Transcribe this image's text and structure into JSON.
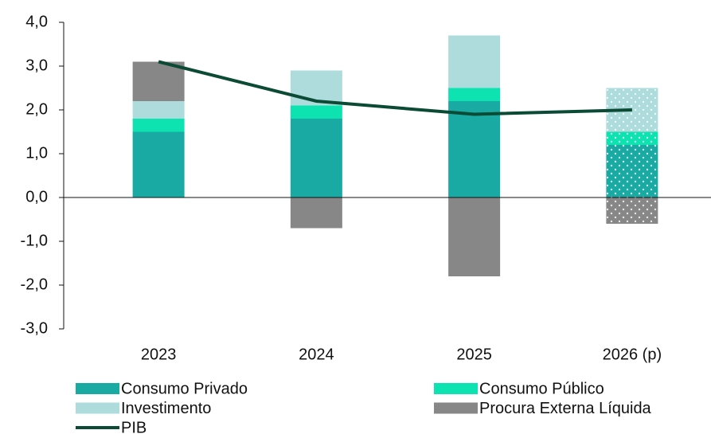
{
  "chart_data": {
    "type": "stacked-bar-line",
    "categories": [
      "2023",
      "2024",
      "2025",
      "2026 (p)"
    ],
    "dotted": [
      false,
      false,
      false,
      true
    ],
    "series": [
      {
        "name": "Consumo Privado",
        "color": "#1aaaa4",
        "values": [
          1.5,
          1.8,
          2.2,
          1.2
        ]
      },
      {
        "name": "Consumo Público",
        "color": "#0de3b0",
        "values": [
          0.3,
          0.3,
          0.3,
          0.3
        ]
      },
      {
        "name": "Investimento",
        "color": "#aedcdc",
        "values": [
          0.4,
          0.8,
          1.2,
          1.0
        ]
      },
      {
        "name": "Procura Externa Líquida",
        "color": "#878787",
        "values": [
          0.9,
          -0.7,
          -1.8,
          -0.6
        ]
      },
      {
        "name": "PIB",
        "color": "#0b4a35",
        "type": "line",
        "values": [
          3.1,
          2.2,
          1.9,
          2.0
        ]
      }
    ],
    "ylim": [
      -3,
      4
    ],
    "yticks": [
      {
        "value": -3,
        "label": "-3,0"
      },
      {
        "value": -2,
        "label": "-2,0"
      },
      {
        "value": -1,
        "label": "-1,0"
      },
      {
        "value": 0,
        "label": "0,0"
      },
      {
        "value": 1,
        "label": "1,0"
      },
      {
        "value": 2,
        "label": "2,0"
      },
      {
        "value": 3,
        "label": "3,0"
      },
      {
        "value": 4,
        "label": "4,0"
      }
    ]
  }
}
